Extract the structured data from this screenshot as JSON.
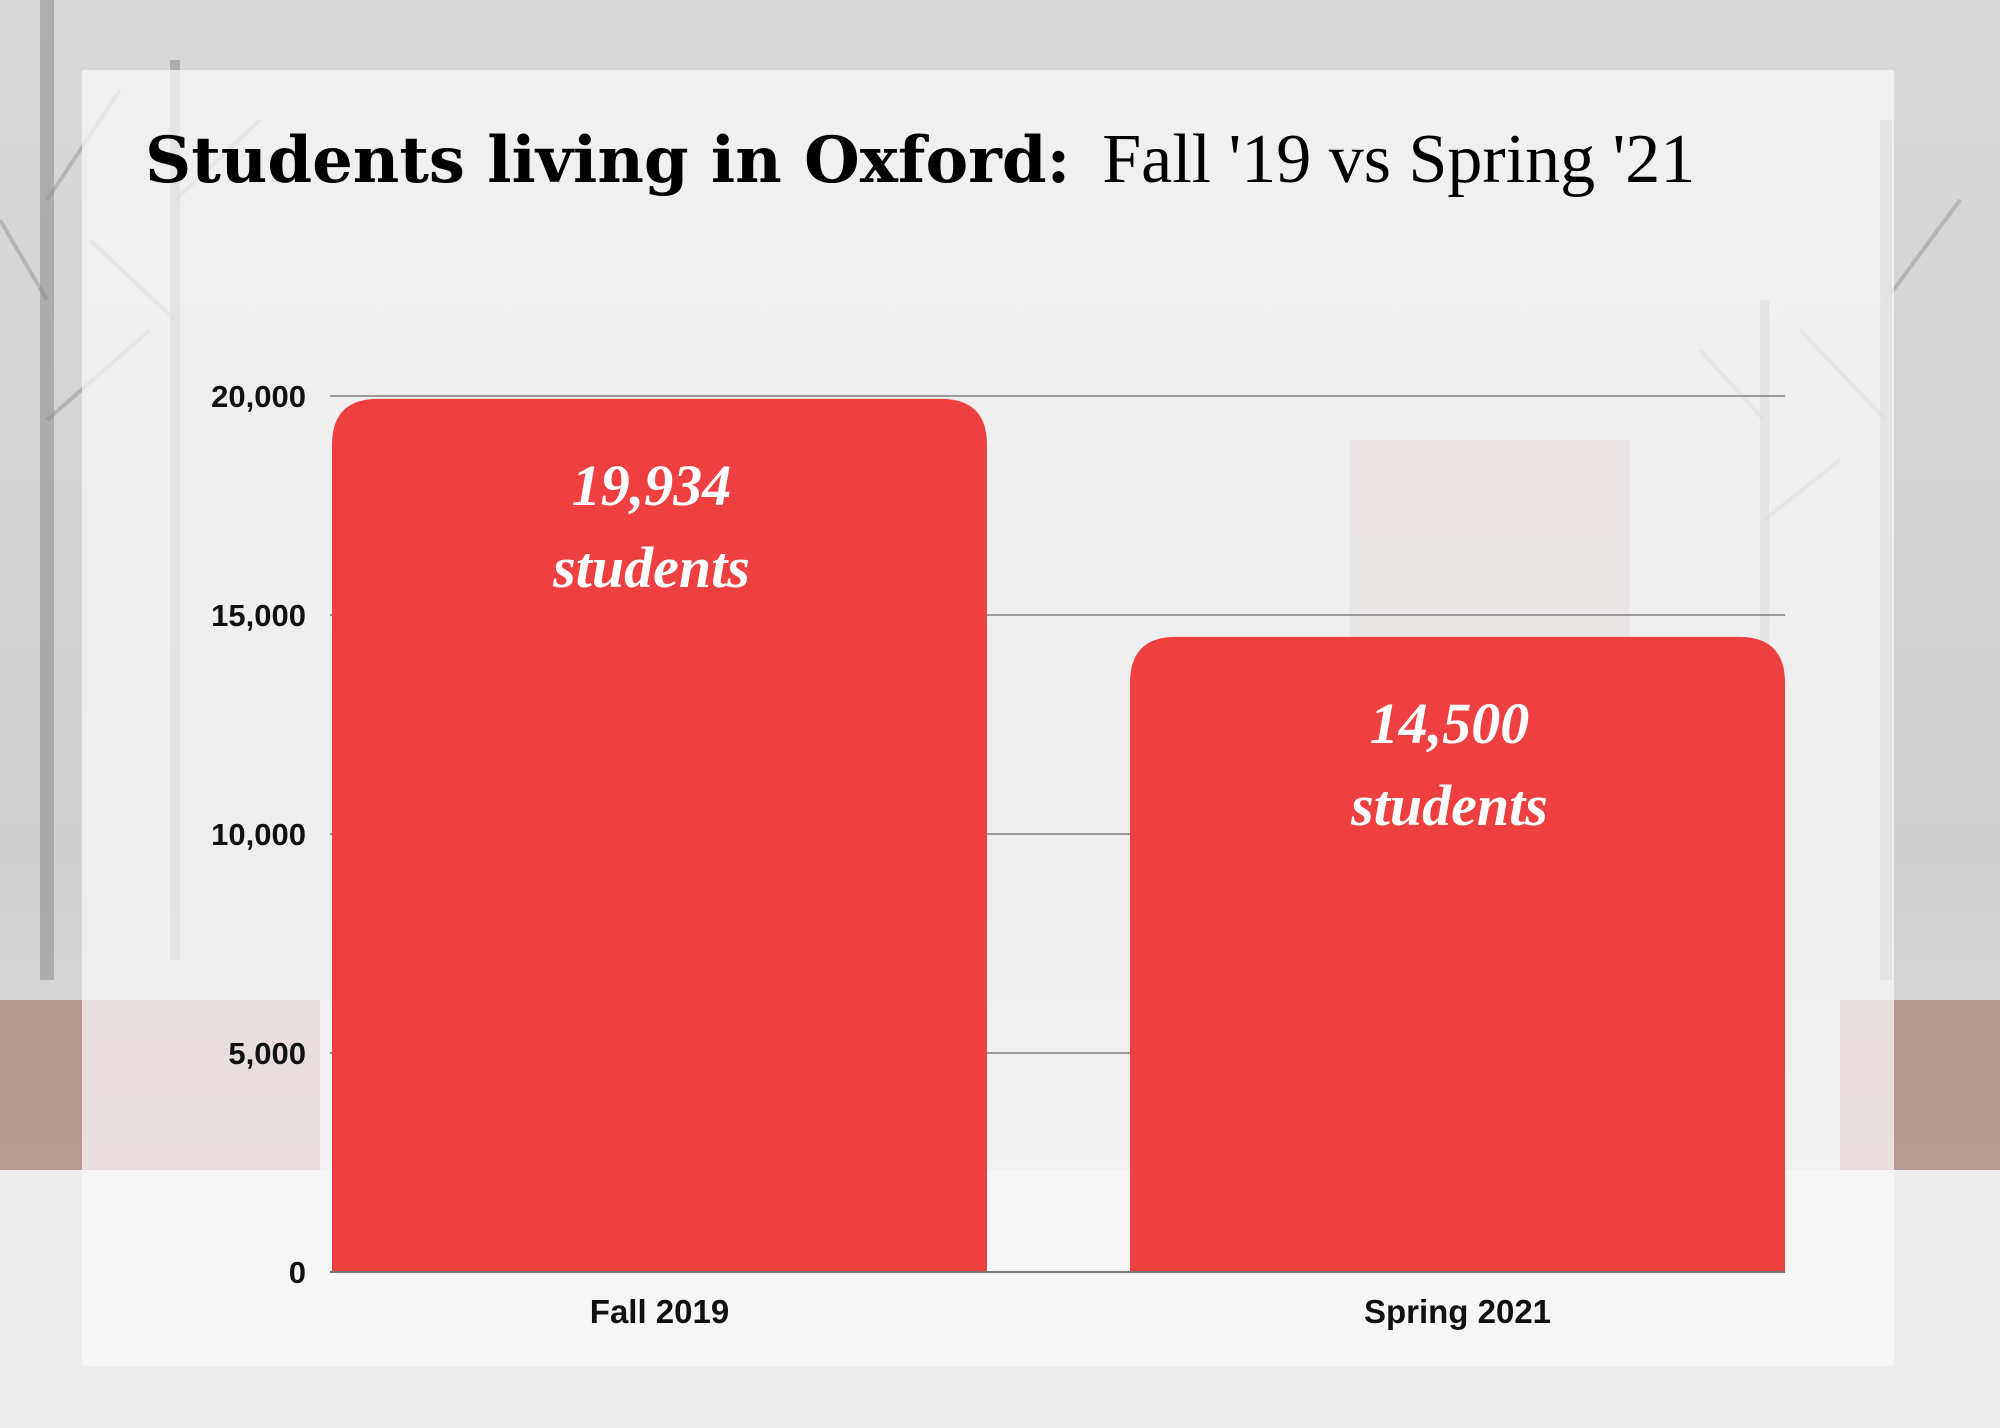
{
  "chart_data": {
    "type": "bar",
    "title_bold": "Students living in Oxford:",
    "title_rest": "Fall '19 vs Spring '21",
    "xlabel": "",
    "ylabel": "",
    "categories": [
      "Fall 2019",
      "Spring 2021"
    ],
    "values": [
      19934,
      14500
    ],
    "data_labels": [
      {
        "line1": "19,934",
        "line2": "students"
      },
      {
        "line1": "14,500",
        "line2": "students"
      }
    ],
    "ylim": [
      0,
      20000
    ],
    "yticks": [
      0,
      5000,
      10000,
      15000,
      20000
    ],
    "ytick_labels": [
      "0",
      "5,000",
      "10,000",
      "15,000",
      "20,000"
    ],
    "grid": true,
    "legend": "none",
    "colors": {
      "bar": "#ef4041",
      "grid": "#9a9a9a",
      "text": "#111111",
      "label": "#ffffff"
    }
  }
}
